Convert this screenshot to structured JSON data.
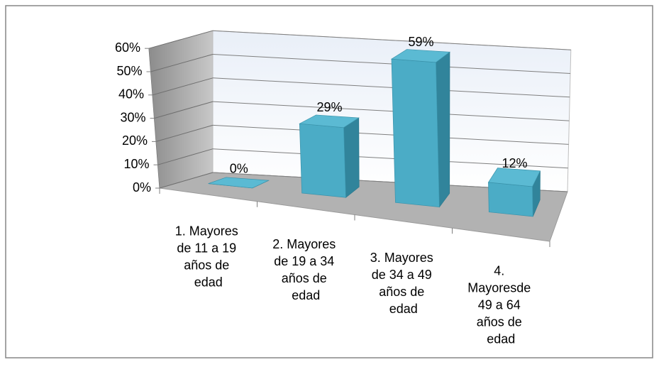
{
  "chart_data": {
    "type": "bar3d",
    "categories": [
      "1. Mayores de 11 a 19 años de edad",
      "2. Mayores de 19 a 34 años de edad",
      "3. Mayores de 34 a 49 años de edad",
      "4. Mayoresde 49 a 64 años de edad"
    ],
    "values": [
      0,
      29,
      59,
      12
    ],
    "value_labels": [
      "0%",
      "29%",
      "59%",
      "12%"
    ],
    "color": "#4bacc6",
    "ylim": [
      0,
      60
    ],
    "yticks": [
      {
        "value": 0,
        "label": "0%"
      },
      {
        "value": 10,
        "label": "10%"
      },
      {
        "value": 20,
        "label": "20%"
      },
      {
        "value": 30,
        "label": "30%"
      },
      {
        "value": 40,
        "label": "40%"
      },
      {
        "value": 50,
        "label": "50%"
      },
      {
        "value": 60,
        "label": "60%"
      }
    ],
    "grid": true
  }
}
